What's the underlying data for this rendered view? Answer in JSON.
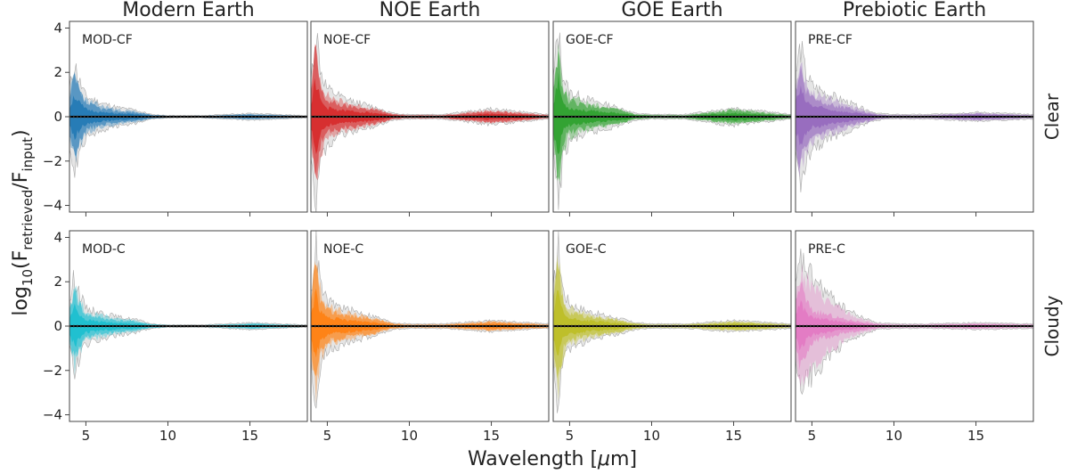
{
  "figure": {
    "ylabel_base": "log",
    "ylabel_sub": "10",
    "ylabel_open": "(F",
    "ylabel_sub1": "retrieved",
    "ylabel_mid": "/F",
    "ylabel_sub2": "input",
    "ylabel_close": ")",
    "xlabel_prefix": "Wavelength [",
    "xlabel_mu": "μ",
    "xlabel_suffix": "m]",
    "columns": [
      "Modern Earth",
      "NOE Earth",
      "GOE Earth",
      "Prebiotic Earth"
    ],
    "rows": [
      "Clear",
      "Cloudy"
    ]
  },
  "chart_data": {
    "type": "area",
    "xlabel": "Wavelength [μm]",
    "ylabel": "log10(F_retrieved/F_input)",
    "xlim": [
      4,
      18.5
    ],
    "ylim": [
      -4.3,
      4.3
    ],
    "x_ticks": [
      5,
      10,
      15
    ],
    "y_ticks": [
      -4,
      -2,
      0,
      2,
      4
    ],
    "grid": false,
    "panels": [
      {
        "row": "Clear",
        "column": "Modern Earth",
        "label": "MOD-CF",
        "color": "#1f77b4",
        "x": [
          4,
          4.3,
          4.6,
          5,
          6,
          7,
          8,
          9,
          10,
          12,
          15,
          18.5
        ],
        "spread_outer": [
          1.2,
          2.4,
          1.6,
          0.9,
          0.6,
          0.4,
          0.3,
          0.1,
          0.05,
          0.05,
          0.15,
          0.05
        ],
        "spread_inner": [
          0.7,
          1.8,
          1.1,
          0.6,
          0.35,
          0.25,
          0.2,
          0.08,
          0.04,
          0.03,
          0.1,
          0.03
        ],
        "median": [
          0,
          0,
          0,
          0,
          0,
          0,
          0,
          0,
          0,
          0,
          0,
          0
        ]
      },
      {
        "row": "Clear",
        "column": "NOE Earth",
        "label": "NOE-CF",
        "color": "#d62728",
        "x": [
          4,
          4.3,
          4.6,
          5,
          6,
          7,
          8,
          9,
          10,
          12,
          15,
          18.5
        ],
        "spread_outer": [
          1.5,
          3.9,
          2.0,
          1.2,
          0.8,
          0.6,
          0.4,
          0.15,
          0.1,
          0.1,
          0.35,
          0.1
        ],
        "spread_inner": [
          1.0,
          3.0,
          1.2,
          0.7,
          0.5,
          0.4,
          0.3,
          0.1,
          0.05,
          0.05,
          0.25,
          0.05
        ],
        "median": [
          0,
          0,
          0,
          0,
          0,
          0,
          0,
          0,
          0,
          0,
          0,
          0
        ]
      },
      {
        "row": "Clear",
        "column": "GOE Earth",
        "label": "GOE-CF",
        "color": "#2ca02c",
        "x": [
          4,
          4.3,
          4.6,
          5,
          6,
          7,
          8,
          9,
          10,
          12,
          15,
          18.5
        ],
        "spread_outer": [
          1.6,
          3.9,
          1.8,
          1.1,
          0.8,
          0.6,
          0.4,
          0.15,
          0.1,
          0.1,
          0.4,
          0.1
        ],
        "spread_inner": [
          1.1,
          3.1,
          1.1,
          0.7,
          0.5,
          0.4,
          0.3,
          0.1,
          0.05,
          0.05,
          0.3,
          0.05
        ],
        "median": [
          0,
          0,
          0,
          0,
          0,
          0,
          0,
          0,
          0,
          0,
          0,
          0
        ]
      },
      {
        "row": "Clear",
        "column": "Prebiotic Earth",
        "label": "PRE-CF",
        "color": "#9467bd",
        "x": [
          4,
          4.3,
          4.6,
          5,
          6,
          7,
          8,
          9,
          10,
          12,
          15,
          18.5
        ],
        "spread_outer": [
          1.8,
          3.2,
          2.0,
          1.4,
          1.0,
          0.7,
          0.4,
          0.15,
          0.1,
          0.1,
          0.2,
          0.1
        ],
        "spread_inner": [
          1.2,
          2.2,
          1.3,
          0.9,
          0.6,
          0.4,
          0.25,
          0.1,
          0.05,
          0.05,
          0.15,
          0.05
        ],
        "median": [
          0,
          0,
          0,
          0,
          0,
          0,
          0,
          0,
          0,
          0,
          0,
          0
        ]
      },
      {
        "row": "Cloudy",
        "column": "Modern Earth",
        "label": "MOD-C",
        "color": "#17becf",
        "x": [
          4,
          4.3,
          4.6,
          5,
          6,
          7,
          8,
          9,
          10,
          12,
          15,
          18.5
        ],
        "spread_outer": [
          1.0,
          2.3,
          1.5,
          0.8,
          0.6,
          0.4,
          0.3,
          0.1,
          0.05,
          0.05,
          0.15,
          0.05
        ],
        "spread_inner": [
          0.6,
          1.6,
          1.0,
          0.5,
          0.35,
          0.25,
          0.2,
          0.08,
          0.04,
          0.03,
          0.1,
          0.03
        ],
        "median": [
          0,
          0,
          0,
          0,
          0,
          0,
          0,
          0,
          0,
          0,
          0,
          0
        ]
      },
      {
        "row": "Cloudy",
        "column": "NOE Earth",
        "label": "NOE-C",
        "color": "#ff7f0e",
        "x": [
          4,
          4.3,
          4.6,
          5,
          6,
          7,
          8,
          9,
          10,
          12,
          15,
          18.5
        ],
        "spread_outer": [
          1.4,
          3.7,
          1.8,
          1.1,
          0.8,
          0.6,
          0.4,
          0.15,
          0.1,
          0.1,
          0.25,
          0.1
        ],
        "spread_inner": [
          0.9,
          2.8,
          1.1,
          0.7,
          0.5,
          0.4,
          0.3,
          0.1,
          0.05,
          0.05,
          0.18,
          0.05
        ],
        "median": [
          0,
          0,
          0,
          0,
          0,
          0,
          0,
          0,
          0,
          0,
          0,
          0
        ]
      },
      {
        "row": "Cloudy",
        "column": "GOE Earth",
        "label": "GOE-C",
        "color": "#bcbd22",
        "x": [
          4,
          4.3,
          4.6,
          5,
          6,
          7,
          8,
          9,
          10,
          12,
          15,
          18.5
        ],
        "spread_outer": [
          1.5,
          3.7,
          1.6,
          1.0,
          0.7,
          0.5,
          0.35,
          0.15,
          0.1,
          0.1,
          0.25,
          0.1
        ],
        "spread_inner": [
          1.0,
          2.7,
          1.0,
          0.6,
          0.45,
          0.35,
          0.25,
          0.1,
          0.05,
          0.05,
          0.18,
          0.05
        ],
        "median": [
          0,
          0,
          0,
          0,
          0,
          0,
          0,
          0,
          0,
          0,
          0,
          0
        ]
      },
      {
        "row": "Cloudy",
        "column": "Prebiotic Earth",
        "label": "PRE-C",
        "color": "#e377c2",
        "x": [
          4,
          4.3,
          4.6,
          5,
          6,
          7,
          8,
          9,
          10,
          12,
          15,
          18.5
        ],
        "spread_outer": [
          1.6,
          3.0,
          2.6,
          2.2,
          1.4,
          0.8,
          0.4,
          0.15,
          0.1,
          0.1,
          0.15,
          0.1
        ],
        "spread_inner": [
          1.0,
          2.0,
          1.2,
          0.7,
          0.5,
          0.3,
          0.2,
          0.08,
          0.05,
          0.05,
          0.1,
          0.05
        ],
        "median": [
          0,
          0,
          0,
          0,
          0,
          0,
          0,
          0,
          0,
          0,
          0,
          0
        ]
      }
    ]
  }
}
